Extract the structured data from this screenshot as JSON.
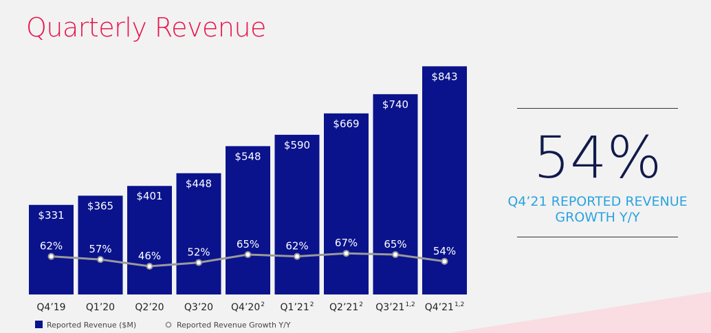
{
  "header": {
    "title": "Quarterly Revenue"
  },
  "kpi": {
    "value": "54%",
    "caption_line1": "Q4’21 REPORTED REVENUE",
    "caption_line2": "GROWTH Y/Y"
  },
  "colors": {
    "bar": "#0a138c",
    "line": "#9a9a9a",
    "title": "#e8144b",
    "kpi_caption": "#2aa3e0",
    "kpi_value": "#111a4a"
  },
  "chart_data": {
    "type": "bar",
    "categories": [
      {
        "label": "Q4’19",
        "sup": ""
      },
      {
        "label": "Q1’20",
        "sup": ""
      },
      {
        "label": "Q2’20",
        "sup": ""
      },
      {
        "label": "Q3’20",
        "sup": ""
      },
      {
        "label": "Q4’20",
        "sup": "2"
      },
      {
        "label": "Q1’21",
        "sup": "2"
      },
      {
        "label": "Q2’21",
        "sup": "2"
      },
      {
        "label": "Q3’21",
        "sup": "1,2"
      },
      {
        "label": "Q4’21",
        "sup": "1,2"
      }
    ],
    "series": [
      {
        "name": "Reported Revenue ($M)",
        "type": "bar",
        "values": [
          331,
          365,
          401,
          448,
          548,
          590,
          669,
          740,
          843
        ],
        "labels": [
          "$331",
          "$365",
          "$401",
          "$448",
          "$548",
          "$590",
          "$669",
          "$740",
          "$843"
        ]
      },
      {
        "name": "Reported Revenue Growth Y/Y",
        "type": "line",
        "values": [
          62,
          57,
          46,
          52,
          65,
          62,
          67,
          65,
          54
        ],
        "labels": [
          "62%",
          "57%",
          "46%",
          "52%",
          "65%",
          "62%",
          "67%",
          "65%",
          "54%"
        ]
      }
    ],
    "legend": "bottom-left",
    "grid": false
  }
}
